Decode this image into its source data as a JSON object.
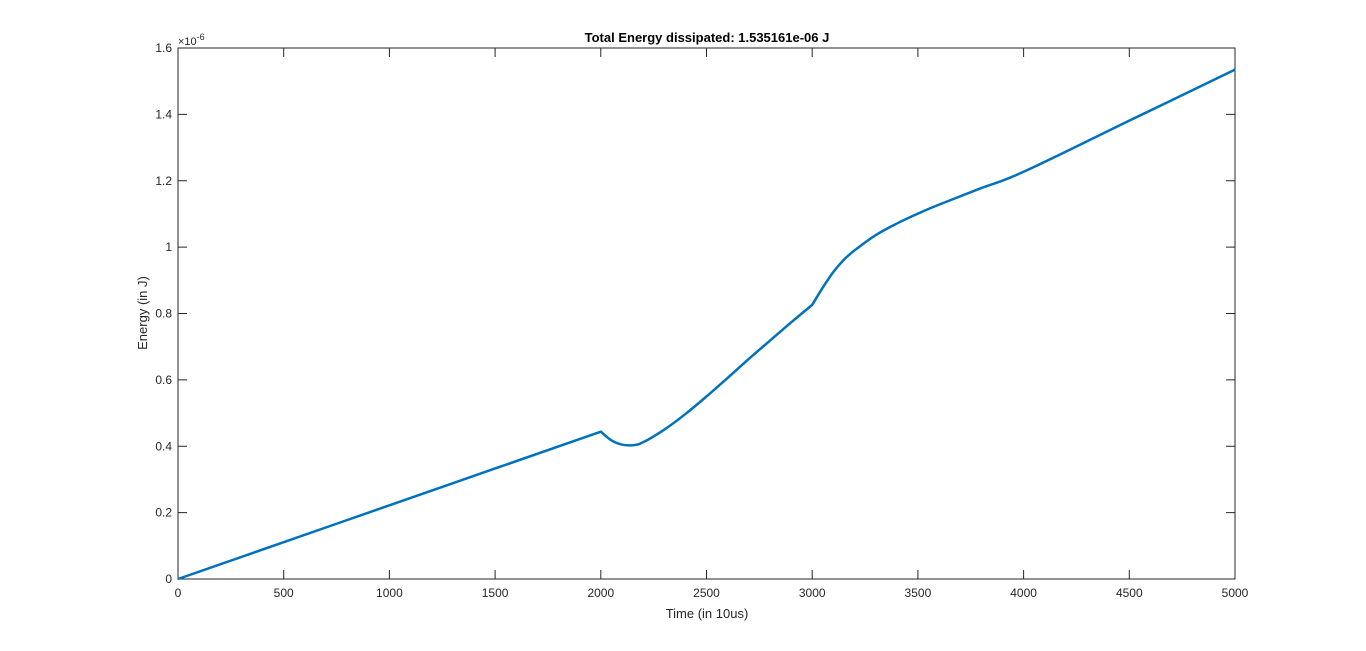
{
  "chart_data": {
    "type": "line",
    "title": "Total Energy dissipated: 1.535161e-06 J",
    "xlabel": "Time (in 10us)",
    "ylabel": "Energy (in J)",
    "xlim": [
      0,
      5000
    ],
    "ylim": [
      0,
      1.6
    ],
    "y_exponent": {
      "base": "×10",
      "power": "-6"
    },
    "x_ticks": [
      "0",
      "500",
      "1000",
      "1500",
      "2000",
      "2500",
      "3000",
      "3500",
      "4000",
      "4500",
      "5000"
    ],
    "x_tick_values": [
      0,
      500,
      1000,
      1500,
      2000,
      2500,
      3000,
      3500,
      4000,
      4500,
      5000
    ],
    "y_ticks": [
      "0",
      "0.2",
      "0.4",
      "0.6",
      "0.8",
      "1",
      "1.2",
      "1.4",
      "1.6"
    ],
    "y_tick_values": [
      0,
      0.2,
      0.4,
      0.6,
      0.8,
      1.0,
      1.2,
      1.4,
      1.6
    ],
    "grid": false,
    "box": true,
    "series": [
      {
        "color": "#0072bd",
        "x": [
          0,
          500,
          1000,
          1500,
          2000,
          2050,
          2100,
          2150,
          2200,
          2300,
          2400,
          2500,
          2600,
          2700,
          2800,
          2900,
          3000,
          3050,
          3100,
          3150,
          3200,
          3300,
          3400,
          3500,
          3600,
          3800,
          4000,
          4500,
          5000
        ],
        "y": [
          0,
          0.111,
          0.222,
          0.333,
          0.444,
          0.418,
          0.405,
          0.403,
          0.412,
          0.45,
          0.497,
          0.55,
          0.606,
          0.663,
          0.718,
          0.773,
          0.826,
          0.878,
          0.925,
          0.962,
          0.99,
          1.036,
          1.071,
          1.101,
          1.128,
          1.178,
          1.227,
          1.381,
          1.535
        ]
      }
    ]
  }
}
